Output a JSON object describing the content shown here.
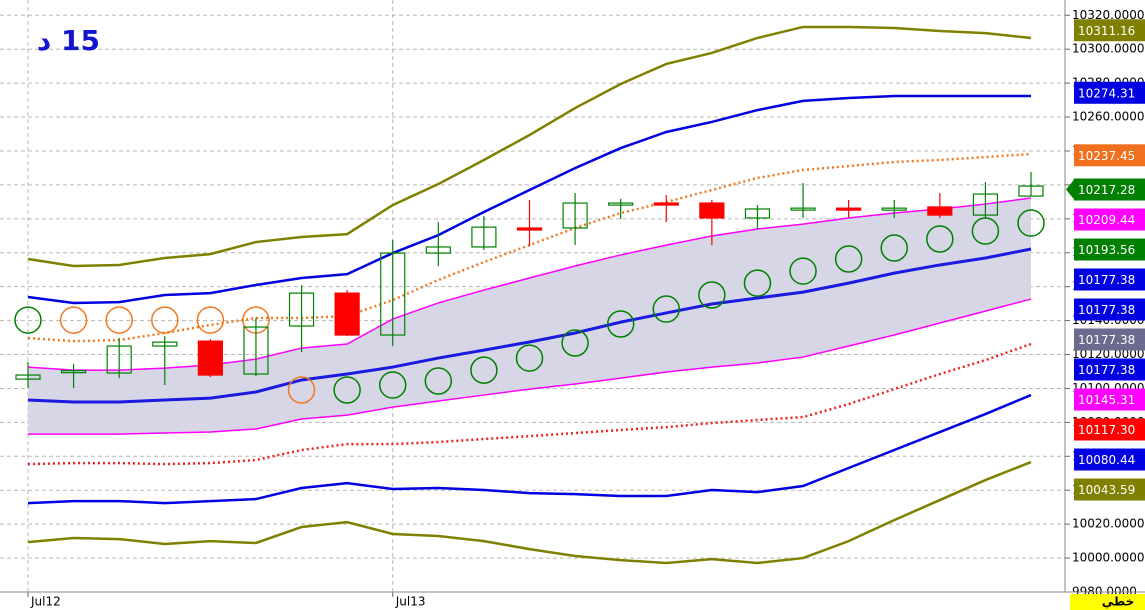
{
  "chart_data": {
    "type": "candlestick",
    "title": "15 د",
    "categories": [
      "Jul12",
      null,
      null,
      null,
      null,
      null,
      null,
      null,
      "Jul13",
      null,
      null,
      null,
      null,
      null,
      null,
      null,
      null,
      null,
      null,
      null,
      null,
      null,
      null
    ],
    "open": [
      10105.5,
      10109.3,
      10109.1,
      10125.0,
      10127.9,
      10108.5,
      10136.8,
      10156.2,
      10131.5,
      10179.8,
      10183.4,
      10194.6,
      10194.6,
      10208.1,
      10209.3,
      10209.3,
      10200.5,
      10205.2,
      10206.3,
      10205.2,
      10207.0,
      10202.2,
      10213.4
    ],
    "high": [
      10115.5,
      10114.3,
      10129.7,
      10130.9,
      10129.1,
      10141.5,
      10160.9,
      10158.0,
      10187.5,
      10198.1,
      10201.6,
      10211.1,
      10215.2,
      10211.7,
      10214.0,
      10211.1,
      10208.1,
      10221.1,
      10211.1,
      10211.1,
      10215.2,
      10221.7,
      10227.6
    ],
    "low": [
      10100.2,
      10100.2,
      10106.1,
      10102.0,
      10106.7,
      10107.3,
      10121.4,
      10130.9,
      10125.0,
      10172.1,
      10181.6,
      10184.0,
      10184.5,
      10199.9,
      10198.1,
      10184.5,
      10194.0,
      10200.5,
      10200.5,
      10200.5,
      10200.5,
      10200.5,
      10213.4
    ],
    "close": [
      10107.9,
      10110.5,
      10125.0,
      10127.3,
      10107.9,
      10136.2,
      10156.2,
      10131.5,
      10179.8,
      10183.4,
      10195.1,
      10193.4,
      10209.3,
      10209.3,
      10208.1,
      10200.5,
      10205.8,
      10206.3,
      10205.2,
      10206.3,
      10202.2,
      10214.6,
      10219.3
    ],
    "up_color": "#008000",
    "down_color": "#ff0000",
    "lines": [
      {
        "color": "#808000",
        "style": "solid",
        "width": 2.5,
        "values": [
          10176.3,
          10172.2,
          10172.8,
          10176.9,
          10179.2,
          10186.3,
          10189.3,
          10191.0,
          10208.1,
          10220.5,
          10234.7,
          10249.4,
          10265.3,
          10279.5,
          10291.3,
          10297.8,
          10306.6,
          10313.1,
          10313.1,
          10312.5,
          10310.7,
          10309.5,
          10306.6
        ]
      },
      {
        "color": "#0000e0",
        "style": "solid",
        "width": 2.5,
        "values": [
          10153.9,
          10150.4,
          10150.9,
          10155.1,
          10156.2,
          10161.0,
          10165.1,
          10167.4,
          10179.8,
          10190.4,
          10204.0,
          10217.0,
          10229.9,
          10241.7,
          10251.2,
          10257.1,
          10264.1,
          10269.5,
          10271.2,
          10272.4,
          10272.4,
          10272.4,
          10272.4
        ]
      },
      {
        "color": "#f07820",
        "style": "dotted",
        "width": 2.5,
        "values": [
          10129.7,
          10127.9,
          10128.5,
          10132.7,
          10137.4,
          10141.5,
          10141.5,
          10142.7,
          10152.1,
          10163.9,
          10174.5,
          10184.5,
          10194.6,
          10203.4,
          10209.9,
          10217.0,
          10224.1,
          10228.8,
          10231.1,
          10233.5,
          10234.7,
          10236.4,
          10238.2
        ]
      },
      {
        "color": "#ff00ff",
        "style": "solid",
        "width": 1.5,
        "values": [
          10112.6,
          10110.8,
          10110.8,
          10112.0,
          10113.8,
          10117.3,
          10123.8,
          10126.2,
          10140.9,
          10150.4,
          10158.0,
          10165.1,
          10172.2,
          10178.7,
          10184.5,
          10189.9,
          10194.0,
          10196.9,
          10200.5,
          10203.4,
          10205.8,
          10208.7,
          10212.3
        ]
      },
      {
        "color": "#1a1ae0",
        "style": "solid",
        "width": 3,
        "values": [
          10093.2,
          10092.0,
          10092.0,
          10093.2,
          10094.3,
          10097.9,
          10105.0,
          10108.5,
          10112.6,
          10117.9,
          10122.6,
          10127.4,
          10132.7,
          10139.1,
          10144.5,
          10149.8,
          10153.3,
          10156.8,
          10162.1,
          10168.0,
          10172.8,
          10176.9,
          10182.2
        ]
      },
      {
        "color": "#ff00ff",
        "style": "solid",
        "width": 1.5,
        "values": [
          10073.1,
          10073.1,
          10073.1,
          10073.7,
          10074.3,
          10076.1,
          10082.0,
          10084.3,
          10089.0,
          10092.6,
          10096.1,
          10099.6,
          10102.6,
          10106.1,
          10109.7,
          10112.6,
          10115.0,
          10118.5,
          10125.0,
          10131.5,
          10138.6,
          10145.6,
          10152.7
        ]
      },
      {
        "color": "#f02020",
        "style": "dotted",
        "width": 2.5,
        "values": [
          10055.4,
          10056.0,
          10056.0,
          10055.4,
          10056.0,
          10057.8,
          10063.7,
          10067.2,
          10067.2,
          10068.4,
          10070.2,
          10071.9,
          10073.7,
          10075.5,
          10077.2,
          10079.6,
          10081.4,
          10083.1,
          10090.8,
          10099.6,
          10108.5,
          10116.7,
          10126.2
        ]
      },
      {
        "color": "#0000e0",
        "style": "solid",
        "width": 2.5,
        "values": [
          10032.4,
          10033.6,
          10033.6,
          10032.4,
          10033.6,
          10034.8,
          10041.3,
          10044.2,
          10040.7,
          10041.3,
          10040.1,
          10038.3,
          10037.7,
          10036.6,
          10036.6,
          10040.1,
          10038.9,
          10042.5,
          10053.1,
          10063.7,
          10074.3,
          10084.9,
          10096.1
        ]
      },
      {
        "color": "#808000",
        "style": "solid",
        "width": 2.5,
        "values": [
          10009.4,
          10011.8,
          10011.2,
          10008.3,
          10010.0,
          10008.9,
          10018.3,
          10021.2,
          10014.2,
          10013.0,
          10010.0,
          10005.3,
          10001.2,
          9998.8,
          9997.1,
          9999.4,
          9997.1,
          10000.0,
          10010.0,
          10022.4,
          10034.2,
          10046.0,
          10056.6
        ]
      }
    ],
    "band": {
      "color": "#d6d6e6",
      "between": [
        3,
        5
      ]
    },
    "circles": [
      {
        "color": "#008000",
        "values": [
          10140.3,
          null,
          null,
          null,
          null,
          null,
          null,
          10099.1,
          10102.0,
          10104.4,
          10110.8,
          10117.9,
          10126.8,
          10138.0,
          10146.8,
          10155.1,
          10162.1,
          10169.2,
          10176.3,
          10182.8,
          10188.1,
          10192.8,
          10197.5
        ]
      },
      {
        "color": "#f07820",
        "values": [
          null,
          10140.3,
          10140.3,
          10140.3,
          10140.3,
          10140.3,
          10099.1,
          null,
          null,
          null,
          null,
          null,
          null,
          null,
          null,
          null,
          null,
          null,
          null,
          null,
          null,
          null,
          null
        ]
      }
    ],
    "ylim": [
      9980,
      10329
    ],
    "yticks": [
      {
        "value": 9980,
        "label": "9980.0000"
      },
      {
        "value": 10000,
        "label": "10000.0000"
      },
      {
        "value": 10020,
        "label": "10020.0000"
      },
      {
        "value": 10040,
        "label": "10040.0000"
      },
      {
        "value": 10060,
        "label": "10060.0000"
      },
      {
        "value": 10080,
        "label": "10080.0000"
      },
      {
        "value": 10100,
        "label": "10100.0000"
      },
      {
        "value": 10120,
        "label": "10120.0000"
      },
      {
        "value": 10140,
        "label": "10140.0000"
      },
      {
        "value": 10160,
        "label": "10160.0000"
      },
      {
        "value": 10180,
        "label": "10180.0000"
      },
      {
        "value": 10200,
        "label": "10200.0000"
      },
      {
        "value": 10220,
        "label": "10220.0000"
      },
      {
        "value": 10240,
        "label": "10240.0000"
      },
      {
        "value": 10260,
        "label": "10260.0000"
      },
      {
        "value": 10280,
        "label": "10280.0000"
      },
      {
        "value": 10300,
        "label": "10300.0000"
      },
      {
        "value": 10320,
        "label": "10320.0000"
      }
    ],
    "grid": true,
    "price_tags": [
      {
        "value": 10311.16,
        "label": "10311.16",
        "color": "#808000"
      },
      {
        "value": 10274.31,
        "label": "10274.31",
        "color": "#0000e0"
      },
      {
        "value": 10237.45,
        "label": "10237.45",
        "color": "#f07020"
      },
      {
        "value": 10217.28,
        "label": "10217.28",
        "color": "#008000",
        "pointer": true
      },
      {
        "value": 10209.44,
        "label": "10209.44",
        "color": "#ff00ff"
      },
      {
        "value": 10193.56,
        "label": "10193.56",
        "color": "#008000"
      },
      {
        "value": 10177.38,
        "label": "10177.38",
        "color": "#0000e0"
      },
      {
        "value": 10177.38,
        "label": "10177.38",
        "color": "#0000e0"
      },
      {
        "value": 10177.38,
        "label": "10177.38",
        "color": "#6b6b8f"
      },
      {
        "value": 10177.38,
        "label": "10177.38",
        "color": "#0000e0"
      },
      {
        "value": 10145.31,
        "label": "10145.31",
        "color": "#ff00ff"
      },
      {
        "value": 10117.3,
        "label": "10117.30",
        "color": "#ff0000"
      },
      {
        "value": 10080.44,
        "label": "10080.44",
        "color": "#0000e0"
      },
      {
        "value": 10043.59,
        "label": "10043.59",
        "color": "#808000"
      }
    ],
    "mode_label": "خطي"
  }
}
